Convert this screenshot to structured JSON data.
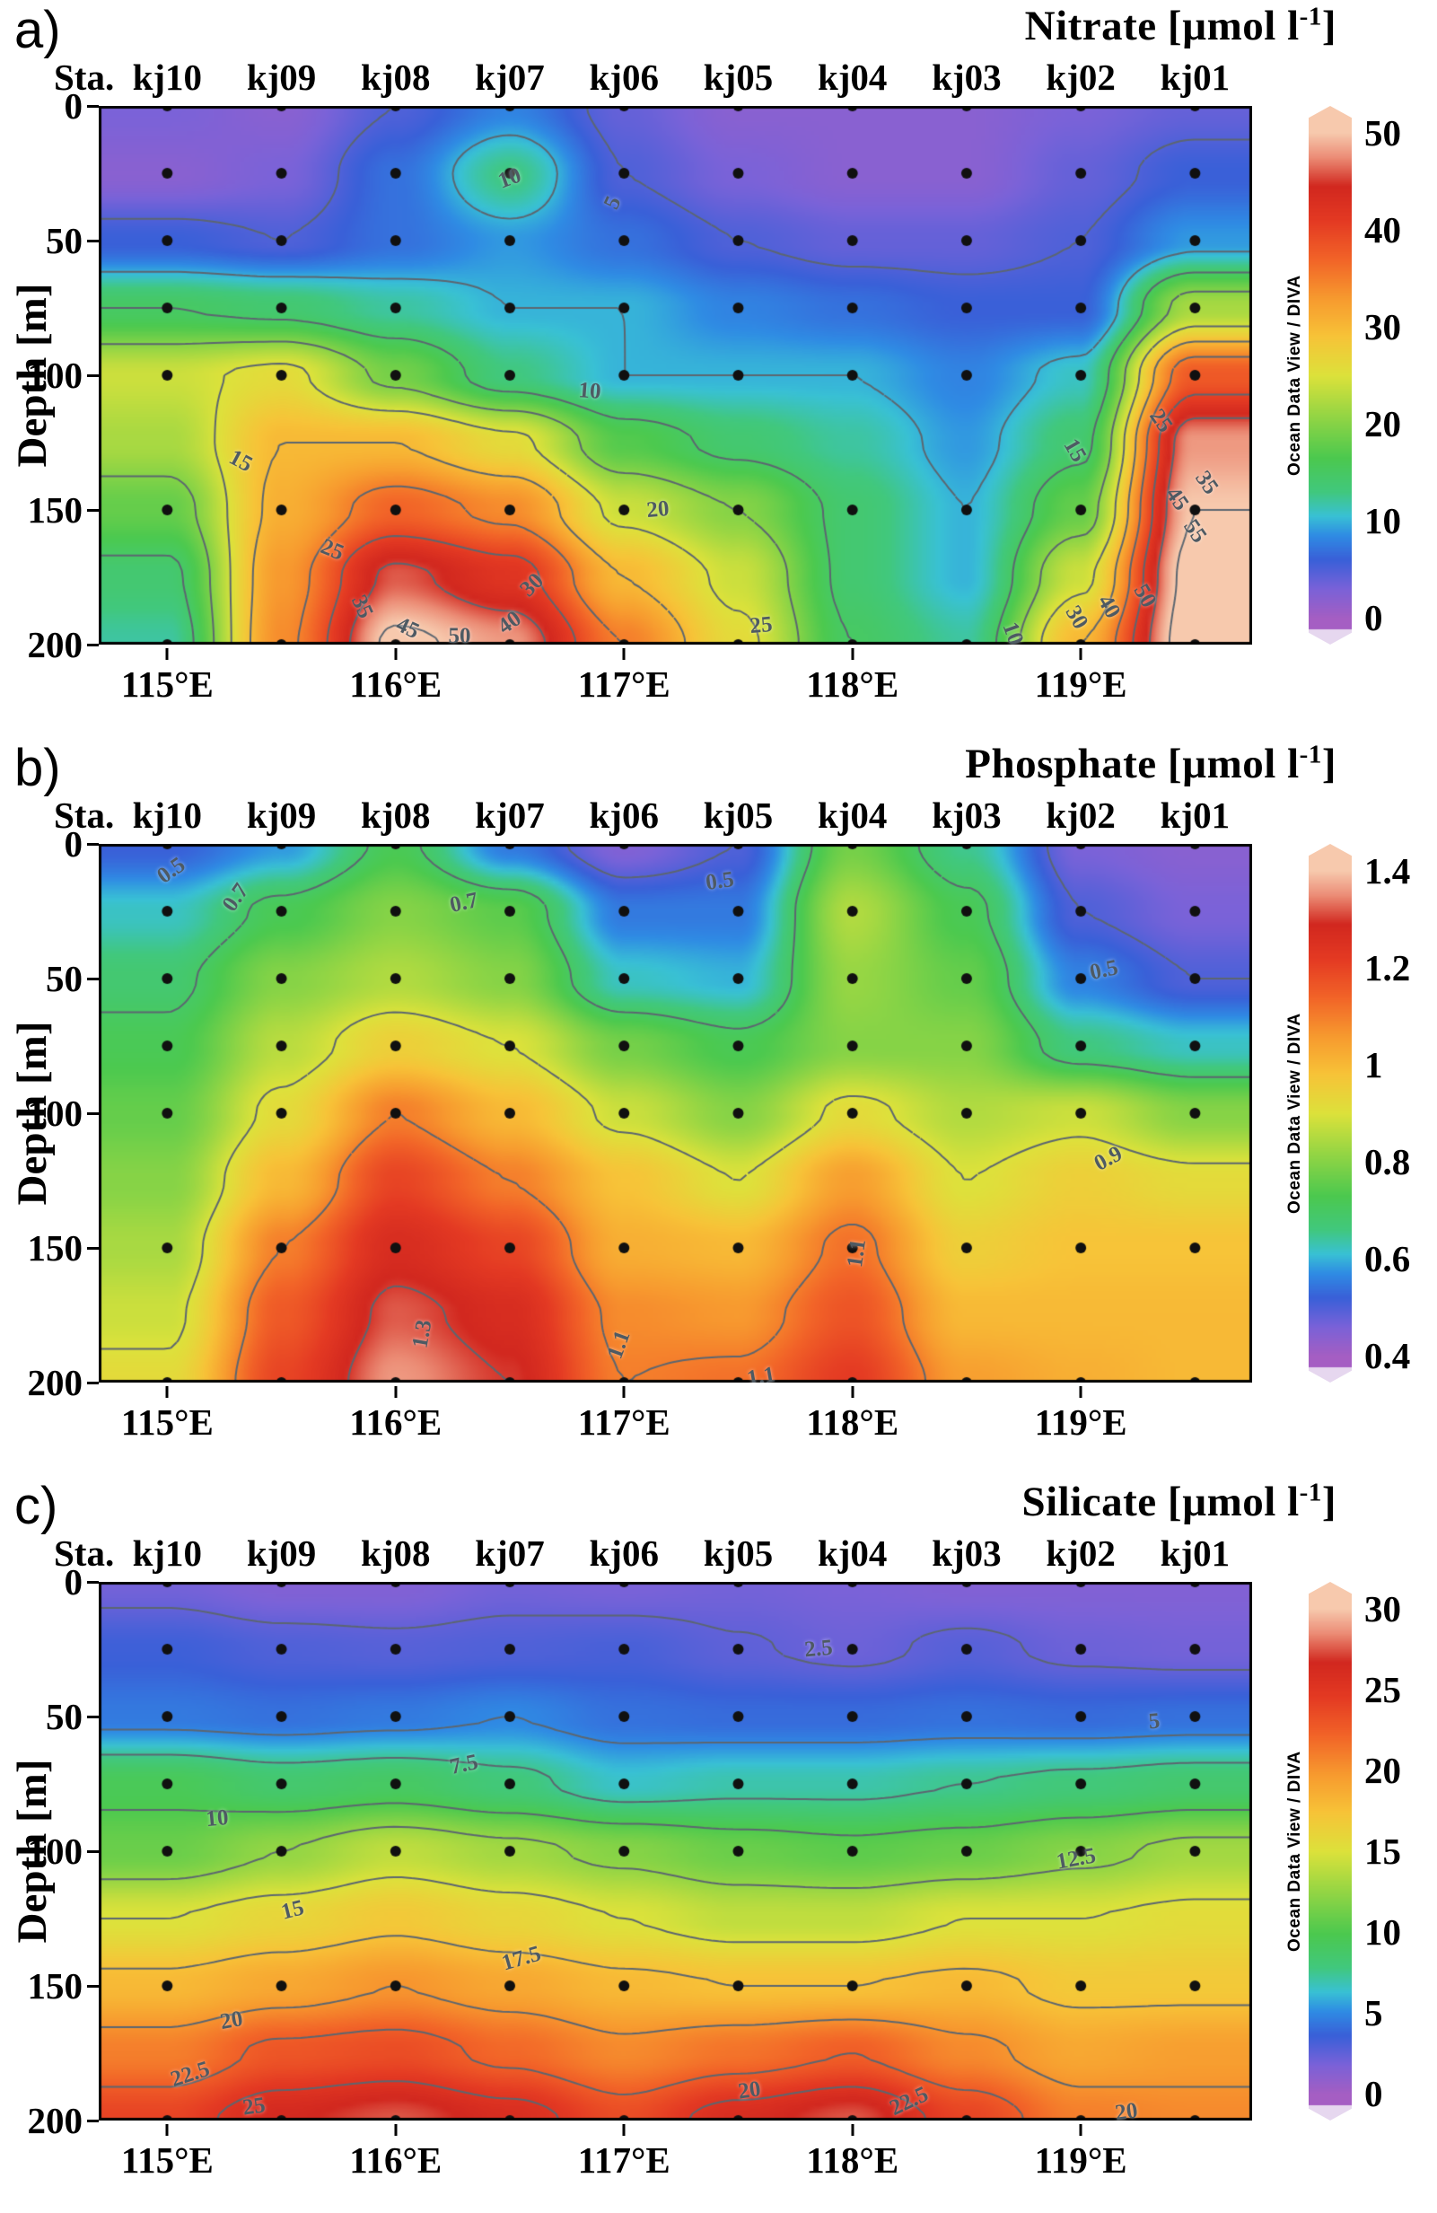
{
  "figure": {
    "background": "#ffffff",
    "sample_depths": [
      0,
      25,
      50,
      75,
      100,
      150,
      200
    ],
    "contour_color": "#5c6670",
    "colormap_stops": [
      [
        0.0,
        "#a55ec3"
      ],
      [
        0.06,
        "#7b62d8"
      ],
      [
        0.12,
        "#3a60d8"
      ],
      [
        0.17,
        "#2f8ce4"
      ],
      [
        0.21,
        "#39c1d5"
      ],
      [
        0.26,
        "#41c87e"
      ],
      [
        0.33,
        "#4cc94f"
      ],
      [
        0.42,
        "#97d644"
      ],
      [
        0.5,
        "#dde23b"
      ],
      [
        0.58,
        "#f7c438"
      ],
      [
        0.66,
        "#f79a2f"
      ],
      [
        0.74,
        "#f26428"
      ],
      [
        0.82,
        "#e43a23"
      ],
      [
        0.89,
        "#d2281f"
      ],
      [
        0.95,
        "#ec8d76"
      ],
      [
        1.0,
        "#f7c9ad"
      ]
    ],
    "under_range_color": "#e6d7ef"
  },
  "panels": [
    {
      "label": "a)",
      "title": {
        "prefix": "Nitrate [µmol l",
        "exponent": "-1",
        "suffix": "]"
      },
      "stations_header": "Sta.",
      "stations": [
        "kj10",
        "kj09",
        "kj08",
        "kj07",
        "kj06",
        "kj05",
        "kj04",
        "kj03",
        "kj02",
        "kj01"
      ],
      "y_label": "Depth [m]",
      "y_ticks": [
        {
          "label": "0",
          "value": 0
        },
        {
          "label": "50",
          "value": 50
        },
        {
          "label": "100",
          "value": 100
        },
        {
          "label": "150",
          "value": 150
        },
        {
          "label": "200",
          "value": 200
        }
      ],
      "x_ticks": [
        {
          "label": "115°E",
          "value": 115
        },
        {
          "label": "116°E",
          "value": 116
        },
        {
          "label": "117°E",
          "value": 117
        },
        {
          "label": "118°E",
          "value": 118
        },
        {
          "label": "119°E",
          "value": 119
        }
      ],
      "colorbar": {
        "credit": "Ocean Data View / DIVA",
        "ticks": [
          {
            "label": "50",
            "value": 50
          },
          {
            "label": "40",
            "value": 40
          },
          {
            "label": "30",
            "value": 30
          },
          {
            "label": "20",
            "value": 20
          },
          {
            "label": "10",
            "value": 10
          },
          {
            "label": "0",
            "value": 0
          }
        ]
      },
      "contour_labels": [
        {
          "text": "10",
          "lon": 116.5,
          "depth": 27,
          "rot": -20
        },
        {
          "text": "5",
          "lon": 116.95,
          "depth": 36,
          "rot": -65
        },
        {
          "text": "15",
          "lon": 115.32,
          "depth": 132,
          "rot": 28
        },
        {
          "text": "25",
          "lon": 115.72,
          "depth": 165,
          "rot": 22
        },
        {
          "text": "10",
          "lon": 116.85,
          "depth": 106,
          "rot": 4
        },
        {
          "text": "20",
          "lon": 117.15,
          "depth": 150,
          "rot": -5
        },
        {
          "text": "30",
          "lon": 116.6,
          "depth": 178,
          "rot": -45
        },
        {
          "text": "35",
          "lon": 115.85,
          "depth": 186,
          "rot": 65
        },
        {
          "text": "45",
          "lon": 116.05,
          "depth": 194,
          "rot": 25
        },
        {
          "text": "50",
          "lon": 116.28,
          "depth": 197,
          "rot": 0
        },
        {
          "text": "40",
          "lon": 116.5,
          "depth": 192,
          "rot": -35
        },
        {
          "text": "25",
          "lon": 117.6,
          "depth": 193,
          "rot": -5
        },
        {
          "text": "10",
          "lon": 118.7,
          "depth": 196,
          "rot": 70
        },
        {
          "text": "15",
          "lon": 118.97,
          "depth": 128,
          "rot": 60
        },
        {
          "text": "25",
          "lon": 119.35,
          "depth": 117,
          "rot": 55
        },
        {
          "text": "35",
          "lon": 119.55,
          "depth": 140,
          "rot": 55
        },
        {
          "text": "45",
          "lon": 119.42,
          "depth": 146,
          "rot": 55
        },
        {
          "text": "55",
          "lon": 119.5,
          "depth": 158,
          "rot": 55
        },
        {
          "text": "30",
          "lon": 118.98,
          "depth": 190,
          "rot": 60
        },
        {
          "text": "40",
          "lon": 119.12,
          "depth": 186,
          "rot": 60
        },
        {
          "text": "50",
          "lon": 119.28,
          "depth": 182,
          "rot": 60
        }
      ]
    },
    {
      "label": "b)",
      "title": {
        "prefix": "Phosphate [µmol l",
        "exponent": "-1",
        "suffix": "]"
      },
      "stations_header": "Sta.",
      "stations": [
        "kj10",
        "kj09",
        "kj08",
        "kj07",
        "kj06",
        "kj05",
        "kj04",
        "kj03",
        "kj02",
        "kj01"
      ],
      "y_label": "Depth [m]",
      "y_ticks": [
        {
          "label": "0",
          "value": 0
        },
        {
          "label": "50",
          "value": 50
        },
        {
          "label": "100",
          "value": 100
        },
        {
          "label": "150",
          "value": 150
        },
        {
          "label": "200",
          "value": 200
        }
      ],
      "x_ticks": [
        {
          "label": "115°E",
          "value": 115
        },
        {
          "label": "116°E",
          "value": 116
        },
        {
          "label": "117°E",
          "value": 117
        },
        {
          "label": "118°E",
          "value": 118
        },
        {
          "label": "119°E",
          "value": 119
        }
      ],
      "colorbar": {
        "credit": "Ocean Data View / DIVA",
        "ticks": [
          {
            "label": "1.4",
            "value": 1.4
          },
          {
            "label": "1.2",
            "value": 1.2
          },
          {
            "label": "1",
            "value": 1.0
          },
          {
            "label": "0.8",
            "value": 0.8
          },
          {
            "label": "0.6",
            "value": 0.6
          },
          {
            "label": "0.4",
            "value": 0.4
          }
        ]
      },
      "contour_labels": [
        {
          "text": "0.5",
          "lon": 115.02,
          "depth": 10,
          "rot": -35
        },
        {
          "text": "0.7",
          "lon": 115.3,
          "depth": 20,
          "rot": -55
        },
        {
          "text": "0.7",
          "lon": 116.3,
          "depth": 22,
          "rot": -12
        },
        {
          "text": "0.5",
          "lon": 117.42,
          "depth": 14,
          "rot": -8
        },
        {
          "text": "0.5",
          "lon": 119.1,
          "depth": 47,
          "rot": -12
        },
        {
          "text": "0.9",
          "lon": 119.12,
          "depth": 117,
          "rot": -28
        },
        {
          "text": "1.1",
          "lon": 118.02,
          "depth": 152,
          "rot": -82
        },
        {
          "text": "1.3",
          "lon": 116.12,
          "depth": 182,
          "rot": -80
        },
        {
          "text": "1.1",
          "lon": 116.98,
          "depth": 186,
          "rot": -70
        },
        {
          "text": "1.1",
          "lon": 117.6,
          "depth": 198,
          "rot": -10
        }
      ]
    },
    {
      "label": "c)",
      "title": {
        "prefix": "Silicate [µmol l",
        "exponent": "-1",
        "suffix": "]"
      },
      "stations_header": "Sta.",
      "stations": [
        "kj10",
        "kj09",
        "kj08",
        "kj07",
        "kj06",
        "kj05",
        "kj04",
        "kj03",
        "kj02",
        "kj01"
      ],
      "y_label": "Depth [m]",
      "y_ticks": [
        {
          "label": "0",
          "value": 0
        },
        {
          "label": "50",
          "value": 50
        },
        {
          "label": "100",
          "value": 100
        },
        {
          "label": "150",
          "value": 150
        },
        {
          "label": "200",
          "value": 200
        }
      ],
      "x_ticks": [
        {
          "label": "115°E",
          "value": 115
        },
        {
          "label": "116°E",
          "value": 116
        },
        {
          "label": "117°E",
          "value": 117
        },
        {
          "label": "118°E",
          "value": 118
        },
        {
          "label": "119°E",
          "value": 119
        }
      ],
      "colorbar": {
        "credit": "Ocean Data View / DIVA",
        "ticks": [
          {
            "label": "30",
            "value": 30
          },
          {
            "label": "25",
            "value": 25
          },
          {
            "label": "20",
            "value": 20
          },
          {
            "label": "15",
            "value": 15
          },
          {
            "label": "10",
            "value": 10
          },
          {
            "label": "5",
            "value": 5
          },
          {
            "label": "0",
            "value": 0
          }
        ]
      },
      "contour_labels": [
        {
          "text": "2.5",
          "lon": 117.85,
          "depth": 25,
          "rot": -5
        },
        {
          "text": "5",
          "lon": 119.32,
          "depth": 52,
          "rot": -5
        },
        {
          "text": "7.5",
          "lon": 116.3,
          "depth": 68,
          "rot": -12
        },
        {
          "text": "10",
          "lon": 115.22,
          "depth": 88,
          "rot": -5
        },
        {
          "text": "12.5",
          "lon": 118.98,
          "depth": 103,
          "rot": -10
        },
        {
          "text": "15",
          "lon": 115.55,
          "depth": 122,
          "rot": -14
        },
        {
          "text": "17.5",
          "lon": 116.55,
          "depth": 140,
          "rot": -16
        },
        {
          "text": "20",
          "lon": 115.28,
          "depth": 163,
          "rot": -10
        },
        {
          "text": "22.5",
          "lon": 115.1,
          "depth": 183,
          "rot": -18
        },
        {
          "text": "25",
          "lon": 115.38,
          "depth": 195,
          "rot": -8
        },
        {
          "text": "20",
          "lon": 117.55,
          "depth": 189,
          "rot": -8
        },
        {
          "text": "22.5",
          "lon": 118.25,
          "depth": 193,
          "rot": -25
        },
        {
          "text": "20",
          "lon": 119.2,
          "depth": 197,
          "rot": -8
        }
      ]
    }
  ],
  "chart_data": [
    {
      "type": "heatmap",
      "title": "Nitrate [µmol l-1]",
      "unit": "µmol l-1",
      "stations": [
        "kj10",
        "kj09",
        "kj08",
        "kj07",
        "kj06",
        "kj05",
        "kj04",
        "kj03",
        "kj02",
        "kj01"
      ],
      "station_longitudes": [
        115.0,
        115.5,
        116.0,
        116.5,
        117.0,
        117.5,
        118.0,
        118.5,
        119.0,
        119.5
      ],
      "x_range": [
        114.7,
        119.75
      ],
      "depths": [
        0,
        25,
        50,
        75,
        100,
        125,
        150,
        175,
        200
      ],
      "depth_range": [
        0,
        200
      ],
      "vmin": 0,
      "vmax": 50,
      "contour_levels": [
        5,
        10,
        15,
        20,
        25,
        30,
        35,
        40,
        45,
        50
      ],
      "values": [
        [
          3,
          2,
          5,
          8,
          4,
          2,
          2,
          2,
          3,
          4
        ],
        [
          2,
          3,
          7,
          13,
          5,
          3,
          2,
          2,
          4,
          6
        ],
        [
          6,
          5,
          7,
          9,
          7,
          5,
          4,
          4,
          5,
          9
        ],
        [
          15,
          14,
          12,
          10,
          10,
          8,
          7,
          6,
          6,
          22
        ],
        [
          24,
          26,
          19,
          13,
          10,
          10,
          10,
          8,
          11,
          38
        ],
        [
          22,
          30,
          30,
          26,
          17,
          14,
          12,
          9,
          14,
          48
        ],
        [
          18,
          31,
          37,
          34,
          24,
          20,
          14,
          10,
          18,
          50
        ],
        [
          14,
          33,
          46,
          42,
          30,
          24,
          14,
          10,
          24,
          52
        ],
        [
          12,
          34,
          51,
          48,
          35,
          26,
          15,
          12,
          30,
          53
        ]
      ]
    },
    {
      "type": "heatmap",
      "title": "Phosphate [µmol l-1]",
      "unit": "µmol l-1",
      "stations": [
        "kj10",
        "kj09",
        "kj08",
        "kj07",
        "kj06",
        "kj05",
        "kj04",
        "kj03",
        "kj02",
        "kj01"
      ],
      "station_longitudes": [
        115.0,
        115.5,
        116.0,
        116.5,
        117.0,
        117.5,
        118.0,
        118.5,
        119.0,
        119.5
      ],
      "x_range": [
        114.7,
        119.75
      ],
      "depths": [
        0,
        25,
        50,
        75,
        100,
        125,
        150,
        175,
        200
      ],
      "depth_range": [
        0,
        200
      ],
      "vmin": 0.4,
      "vmax": 1.4,
      "contour_levels": [
        0.5,
        0.7,
        0.9,
        1.1,
        1.3
      ],
      "values": [
        [
          0.52,
          0.58,
          0.72,
          0.55,
          0.45,
          0.5,
          0.78,
          0.65,
          0.46,
          0.44
        ],
        [
          0.62,
          0.72,
          0.8,
          0.75,
          0.55,
          0.55,
          0.85,
          0.72,
          0.5,
          0.46
        ],
        [
          0.68,
          0.8,
          0.85,
          0.8,
          0.62,
          0.6,
          0.82,
          0.76,
          0.56,
          0.5
        ],
        [
          0.72,
          0.86,
          0.95,
          0.9,
          0.78,
          0.72,
          0.8,
          0.8,
          0.66,
          0.62
        ],
        [
          0.76,
          0.92,
          1.1,
          1.0,
          0.88,
          0.8,
          0.92,
          0.85,
          0.88,
          0.8
        ],
        [
          0.8,
          1.0,
          1.2,
          1.1,
          0.98,
          0.9,
          1.05,
          0.9,
          0.95,
          0.92
        ],
        [
          0.84,
          1.1,
          1.27,
          1.2,
          1.02,
          1.0,
          1.12,
          0.95,
          0.98,
          0.98
        ],
        [
          0.88,
          1.16,
          1.32,
          1.27,
          1.08,
          1.06,
          1.17,
          1.0,
          1.0,
          1.0
        ],
        [
          0.92,
          1.2,
          1.36,
          1.3,
          1.1,
          1.12,
          1.22,
          1.05,
          1.02,
          1.0
        ]
      ]
    },
    {
      "type": "heatmap",
      "title": "Silicate [µmol l-1]",
      "unit": "µmol l-1",
      "stations": [
        "kj10",
        "kj09",
        "kj08",
        "kj07",
        "kj06",
        "kj05",
        "kj04",
        "kj03",
        "kj02",
        "kj01"
      ],
      "station_longitudes": [
        115.0,
        115.5,
        116.0,
        116.5,
        117.0,
        117.5,
        118.0,
        118.5,
        119.0,
        119.5
      ],
      "x_range": [
        114.7,
        119.75
      ],
      "depths": [
        0,
        25,
        50,
        75,
        100,
        125,
        150,
        175,
        200
      ],
      "depth_range": [
        0,
        200
      ],
      "vmin": 0,
      "vmax": 30,
      "contour_levels": [
        2.5,
        5,
        7.5,
        10,
        12.5,
        15,
        17.5,
        20,
        22.5,
        25
      ],
      "values": [
        [
          2,
          1.5,
          1.5,
          2,
          1.8,
          2,
          1.8,
          1.5,
          1.5,
          1.5
        ],
        [
          3.5,
          3,
          2.8,
          3,
          3.2,
          2.6,
          2.2,
          2.8,
          2.2,
          2
        ],
        [
          4.5,
          4.2,
          4.5,
          5,
          4.2,
          4,
          4,
          4.2,
          4,
          4.2
        ],
        [
          9.5,
          8.5,
          9,
          8,
          6.5,
          7,
          7,
          7.5,
          8,
          8.5
        ],
        [
          11,
          12.5,
          14,
          13,
          12,
          11,
          10.5,
          11,
          12,
          13
        ],
        [
          15,
          16,
          17,
          16,
          15,
          14,
          14,
          15,
          15,
          15.5
        ],
        [
          18,
          19,
          20,
          19,
          18,
          17.5,
          17.5,
          18,
          17,
          17
        ],
        [
          21,
          23,
          23.5,
          22,
          20.5,
          21.5,
          22.5,
          20.5,
          19,
          19.5
        ],
        [
          24,
          26.5,
          27.5,
          26,
          23.5,
          26,
          27.5,
          24,
          21,
          20.5
        ]
      ]
    }
  ]
}
